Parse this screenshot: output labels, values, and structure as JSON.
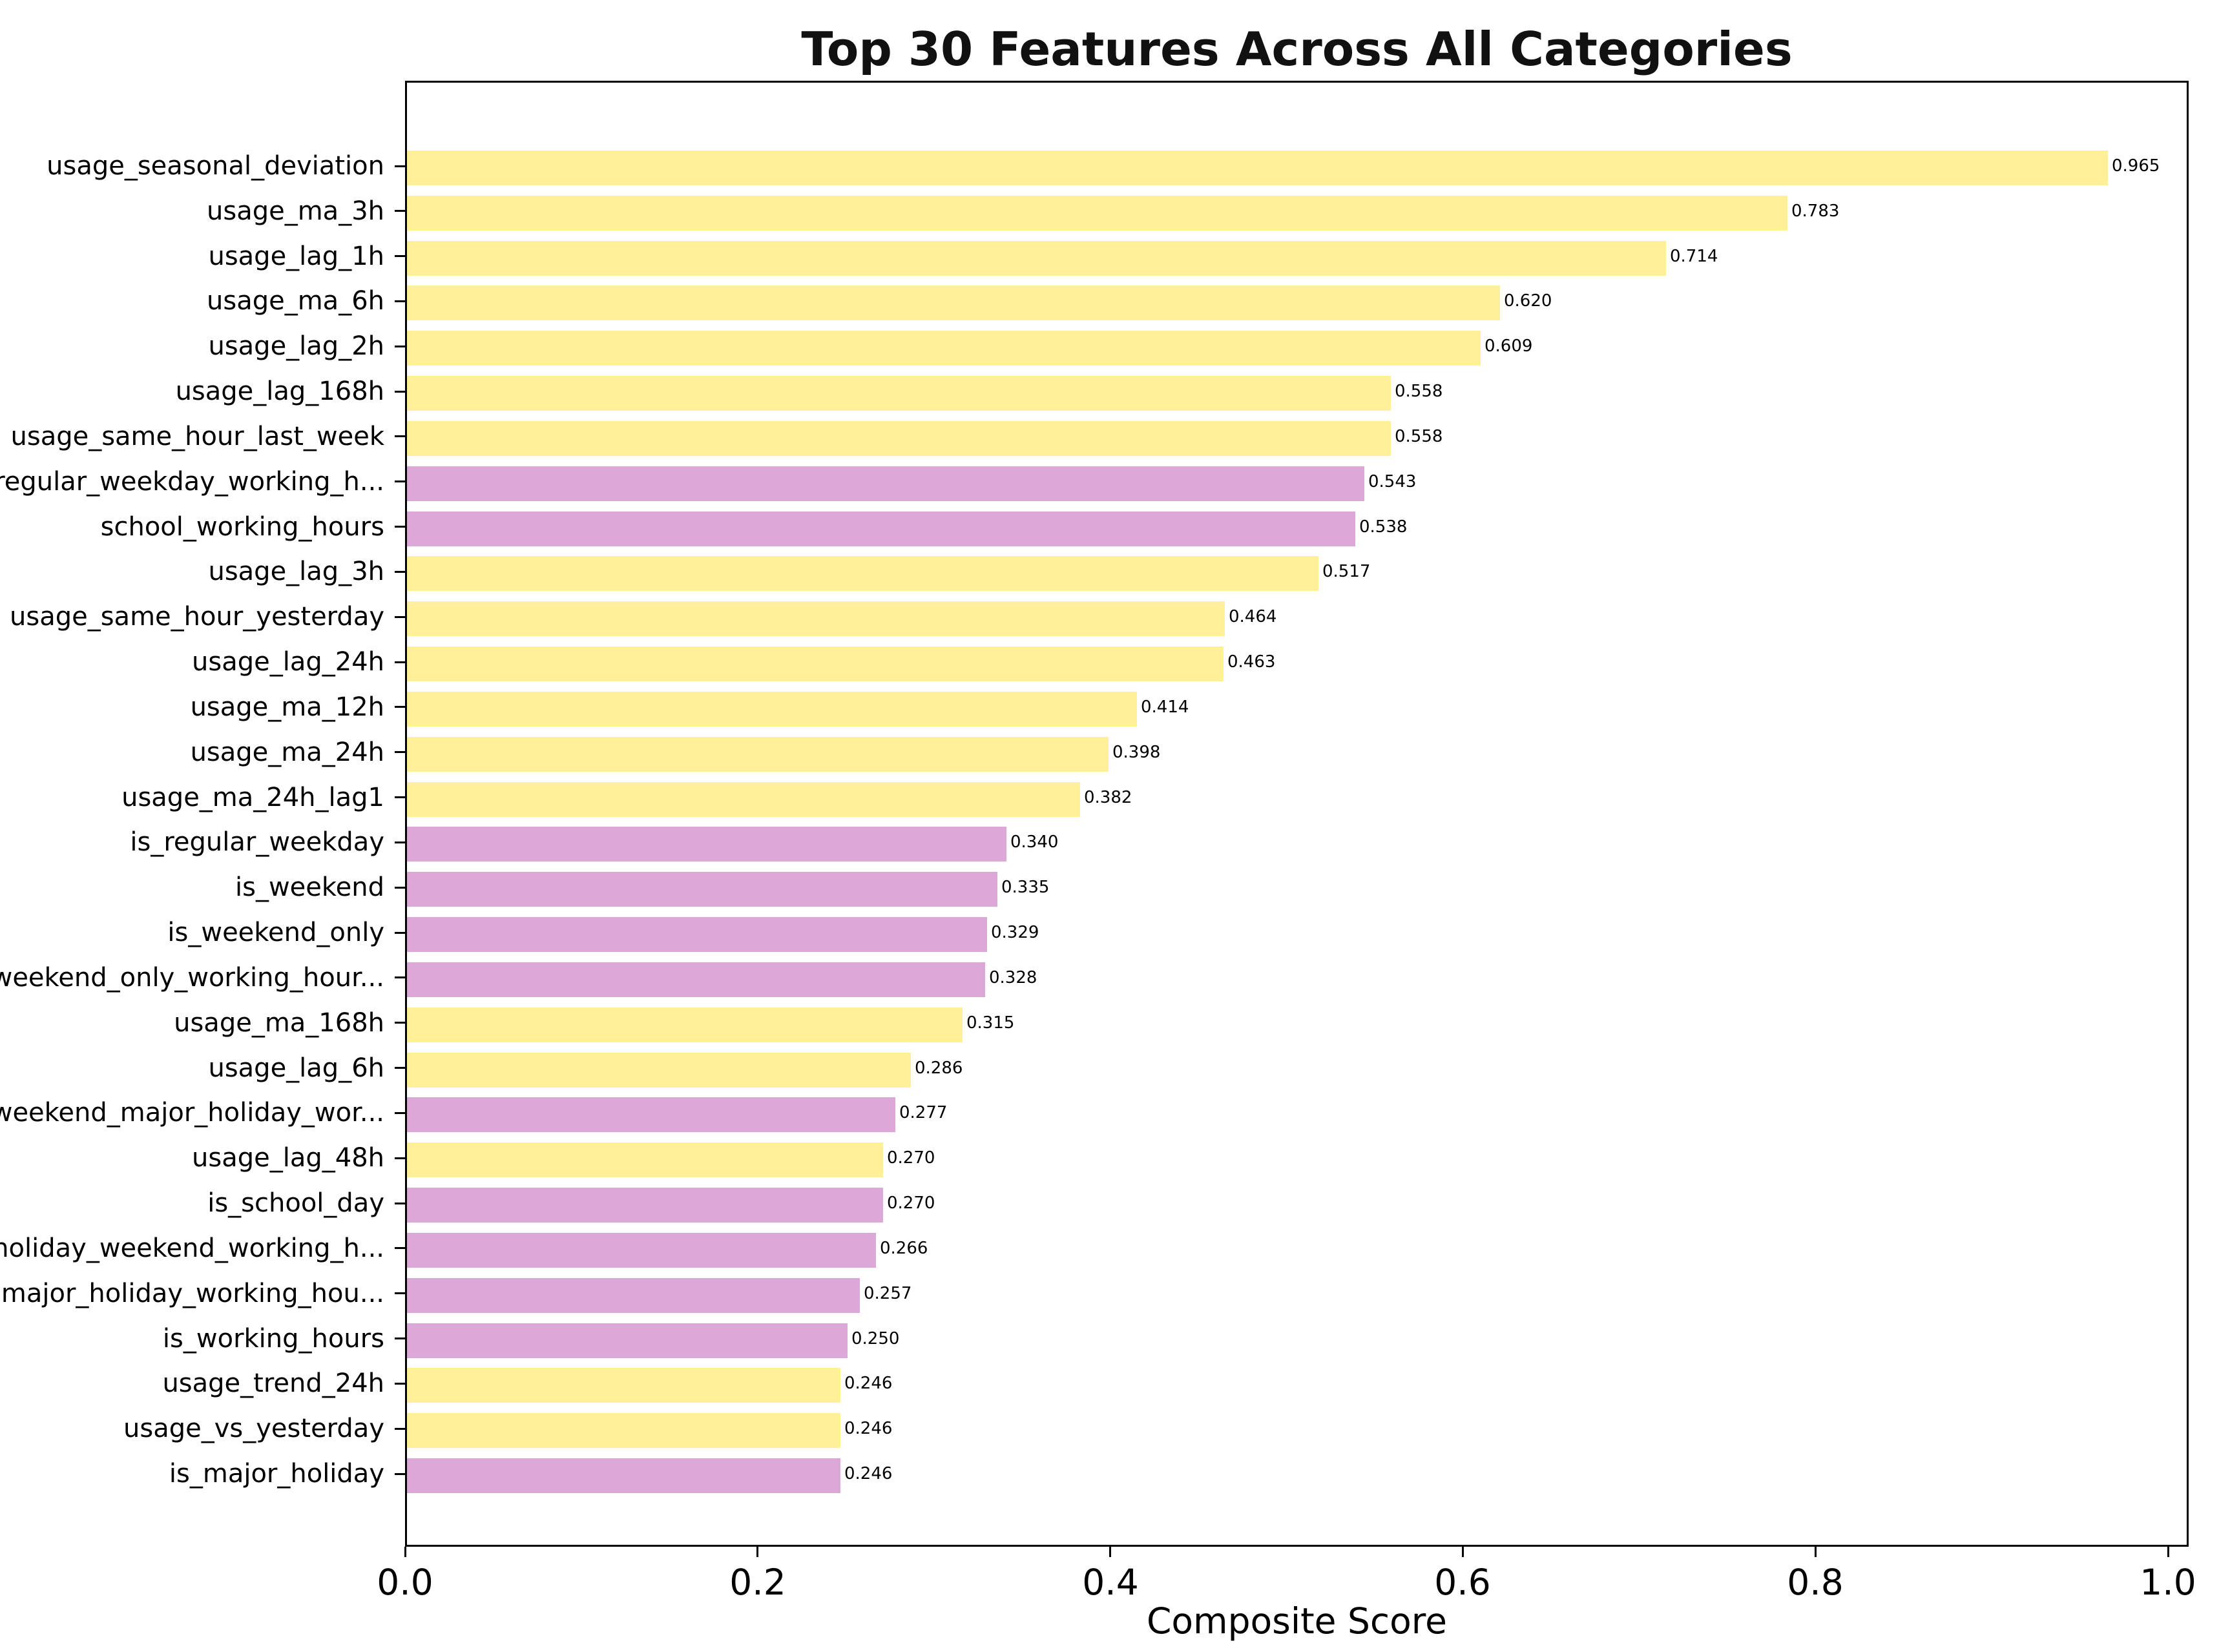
{
  "chart_data": {
    "type": "bar",
    "orientation": "horizontal",
    "title": "Top 30 Features Across All Categories",
    "xlabel": "Composite Score",
    "grid": false,
    "legend_position": "none",
    "xlim": [
      0.0,
      1.01
    ],
    "xticks": [
      0.0,
      0.2,
      0.4,
      0.6,
      0.8,
      1.0
    ],
    "xtick_labels": [
      "0.0",
      "0.2",
      "0.4",
      "0.6",
      "0.8",
      "1.0"
    ],
    "colors": {
      "usage_bar": "#FFF099",
      "pattern_bar": "#DCA8D8",
      "axis": "#000000",
      "background": "#FFFFFF"
    },
    "bars": [
      {
        "label": "usage_seasonal_deviation",
        "value": 0.965,
        "value_label": "0.965",
        "group": "usage_bar"
      },
      {
        "label": "usage_ma_3h",
        "value": 0.783,
        "value_label": "0.783",
        "group": "usage_bar"
      },
      {
        "label": "usage_lag_1h",
        "value": 0.714,
        "value_label": "0.714",
        "group": "usage_bar"
      },
      {
        "label": "usage_ma_6h",
        "value": 0.62,
        "value_label": "0.620",
        "group": "usage_bar"
      },
      {
        "label": "usage_lag_2h",
        "value": 0.609,
        "value_label": "0.609",
        "group": "usage_bar"
      },
      {
        "label": "usage_lag_168h",
        "value": 0.558,
        "value_label": "0.558",
        "group": "usage_bar"
      },
      {
        "label": "usage_same_hour_last_week",
        "value": 0.558,
        "value_label": "0.558",
        "group": "usage_bar"
      },
      {
        "label": "regular_weekday_working_h...",
        "value": 0.543,
        "value_label": "0.543",
        "group": "pattern_bar"
      },
      {
        "label": "school_working_hours",
        "value": 0.538,
        "value_label": "0.538",
        "group": "pattern_bar"
      },
      {
        "label": "usage_lag_3h",
        "value": 0.517,
        "value_label": "0.517",
        "group": "usage_bar"
      },
      {
        "label": "usage_same_hour_yesterday",
        "value": 0.464,
        "value_label": "0.464",
        "group": "usage_bar"
      },
      {
        "label": "usage_lag_24h",
        "value": 0.463,
        "value_label": "0.463",
        "group": "usage_bar"
      },
      {
        "label": "usage_ma_12h",
        "value": 0.414,
        "value_label": "0.414",
        "group": "usage_bar"
      },
      {
        "label": "usage_ma_24h",
        "value": 0.398,
        "value_label": "0.398",
        "group": "usage_bar"
      },
      {
        "label": "usage_ma_24h_lag1",
        "value": 0.382,
        "value_label": "0.382",
        "group": "usage_bar"
      },
      {
        "label": "is_regular_weekday",
        "value": 0.34,
        "value_label": "0.340",
        "group": "pattern_bar"
      },
      {
        "label": "is_weekend",
        "value": 0.335,
        "value_label": "0.335",
        "group": "pattern_bar"
      },
      {
        "label": "is_weekend_only",
        "value": 0.329,
        "value_label": "0.329",
        "group": "pattern_bar"
      },
      {
        "label": "weekend_only_working_hour...",
        "value": 0.328,
        "value_label": "0.328",
        "group": "pattern_bar"
      },
      {
        "label": "usage_ma_168h",
        "value": 0.315,
        "value_label": "0.315",
        "group": "usage_bar"
      },
      {
        "label": "usage_lag_6h",
        "value": 0.286,
        "value_label": "0.286",
        "group": "usage_bar"
      },
      {
        "label": "weekend_major_holiday_wor...",
        "value": 0.277,
        "value_label": "0.277",
        "group": "pattern_bar"
      },
      {
        "label": "usage_lag_48h",
        "value": 0.27,
        "value_label": "0.270",
        "group": "usage_bar"
      },
      {
        "label": "is_school_day",
        "value": 0.27,
        "value_label": "0.270",
        "group": "pattern_bar"
      },
      {
        "label": "holiday_weekend_working_h...",
        "value": 0.266,
        "value_label": "0.266",
        "group": "pattern_bar"
      },
      {
        "label": "major_holiday_working_hou...",
        "value": 0.257,
        "value_label": "0.257",
        "group": "pattern_bar"
      },
      {
        "label": "is_working_hours",
        "value": 0.25,
        "value_label": "0.250",
        "group": "pattern_bar"
      },
      {
        "label": "usage_trend_24h",
        "value": 0.246,
        "value_label": "0.246",
        "group": "usage_bar"
      },
      {
        "label": "usage_vs_yesterday",
        "value": 0.246,
        "value_label": "0.246",
        "group": "usage_bar"
      },
      {
        "label": "is_major_holiday",
        "value": 0.246,
        "value_label": "0.246",
        "group": "pattern_bar"
      }
    ]
  }
}
